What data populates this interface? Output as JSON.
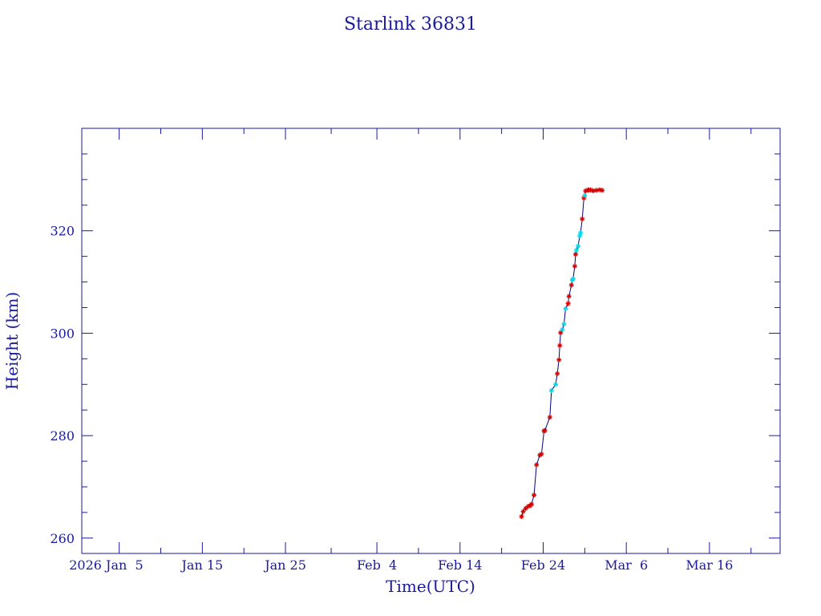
{
  "chart_data": {
    "type": "line",
    "title": "Starlink 36831",
    "xlabel": "Time(UTC)",
    "ylabel": "Height (km)",
    "x_ticks": [
      "2026 Jan  5",
      "Jan 15",
      "Jan 25",
      "Feb  4",
      "Feb 14",
      "Feb 24",
      "Mar  6",
      "Mar 16"
    ],
    "x_tick_days": [
      4,
      14,
      24,
      35,
      45,
      55,
      65,
      75
    ],
    "x_range_days": [
      -0.5,
      83.5
    ],
    "ylim": [
      257,
      340
    ],
    "y_ticks": [
      260,
      280,
      300,
      320
    ],
    "grid": false,
    "colors": {
      "axis": "#1a1a9c",
      "line": "#000080",
      "marker_red": "#d40000",
      "marker_cyan": "#00d8e8"
    },
    "series": [
      {
        "x": [
          "2026-02-21",
          "2026-02-21",
          "2026-02-22",
          "2026-02-22",
          "2026-02-22",
          "2026-02-22",
          "2026-02-23",
          "2026-02-23",
          "2026-02-23",
          "2026-02-23",
          "2026-02-24",
          "2026-02-24",
          "2026-02-24",
          "2026-02-25",
          "2026-02-25",
          "2026-02-25",
          "2026-02-26",
          "2026-02-26",
          "2026-02-26",
          "2026-02-26",
          "2026-02-26",
          "2026-02-27",
          "2026-02-27",
          "2026-02-27",
          "2026-02-27",
          "2026-02-27",
          "2026-02-28",
          "2026-02-28",
          "2026-02-28",
          "2026-02-28",
          "2026-02-28",
          "2026-02-28",
          "2026-02-28",
          "2026-03-01",
          "2026-03-01",
          "2026-03-01",
          "2026-03-01",
          "2026-03-01",
          "2026-03-01",
          "2026-03-02",
          "2026-03-02",
          "2026-03-02",
          "2026-03-03",
          "2026-03-03"
        ],
        "x_days": [
          52.4,
          52.6,
          52.9,
          53.2,
          53.4,
          53.6,
          53.9,
          54.2,
          54.6,
          54.8,
          55.1,
          55.2,
          55.8,
          56.0,
          56.5,
          56.7,
          56.9,
          57.0,
          57.1,
          57.3,
          57.5,
          57.7,
          58.0,
          58.1,
          58.4,
          58.5,
          58.6,
          58.8,
          58.9,
          59.0,
          59.2,
          59.4,
          59.5,
          59.7,
          59.9,
          60.0,
          60.1,
          60.4,
          60.5,
          60.7,
          61.0,
          61.4,
          61.8,
          62.1
        ],
        "y": [
          264.2,
          265.2,
          265.8,
          266.2,
          266.3,
          266.6,
          268.4,
          274.3,
          276.2,
          276.4,
          280.9,
          281.0,
          283.6,
          288.8,
          290.0,
          292.1,
          294.8,
          297.6,
          300.1,
          300.7,
          301.8,
          304.8,
          305.8,
          307.2,
          309.4,
          310.4,
          310.6,
          313.1,
          315.4,
          316.2,
          317.0,
          319.0,
          319.6,
          322.3,
          326.4,
          326.9,
          327.8,
          328.0,
          327.9,
          328.0,
          327.8,
          327.9,
          328.0,
          327.9
        ],
        "marker_colors": [
          "red",
          "red",
          "red",
          "red",
          "red",
          "red",
          "red",
          "red",
          "red",
          "red",
          "red",
          "red",
          "red",
          "cyan",
          "cyan",
          "red",
          "red",
          "red",
          "red",
          "cyan",
          "cyan",
          "cyan",
          "red",
          "red",
          "red",
          "cyan",
          "cyan",
          "red",
          "red",
          "cyan",
          "cyan",
          "cyan",
          "cyan",
          "red",
          "red",
          "cyan",
          "red",
          "red",
          "red",
          "red",
          "red",
          "red",
          "red",
          "red"
        ]
      }
    ]
  }
}
